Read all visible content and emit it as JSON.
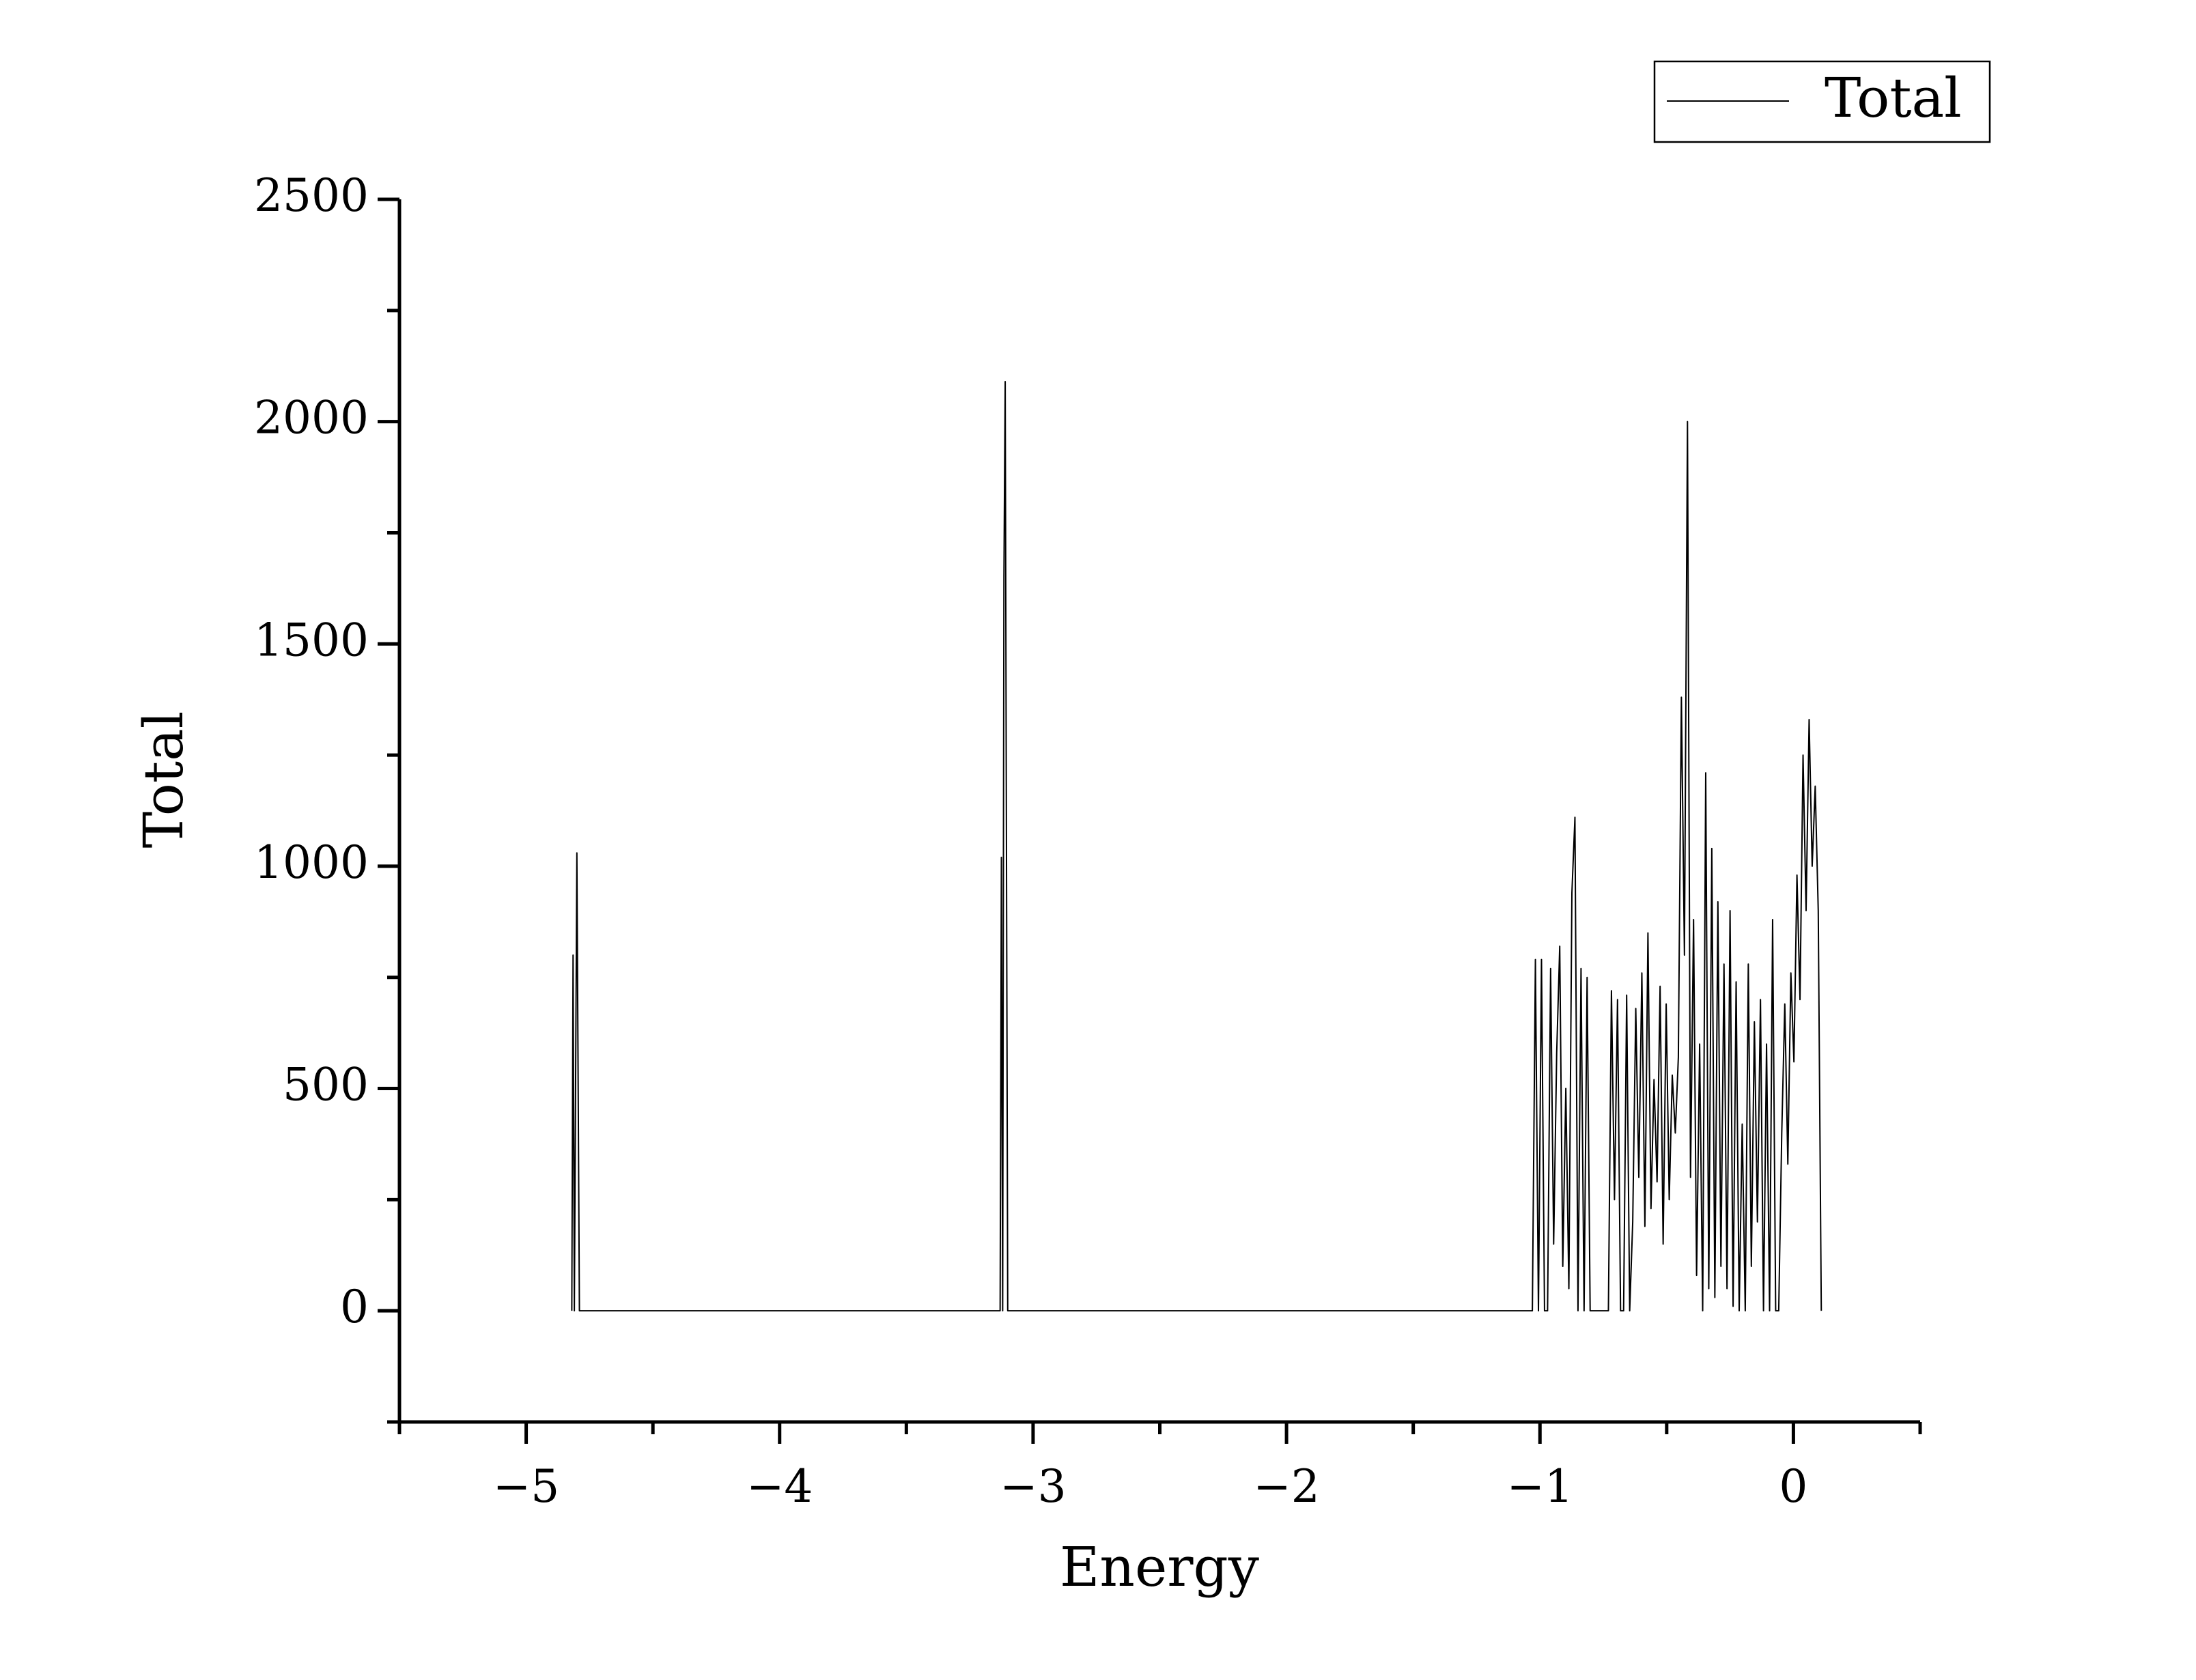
{
  "chart_data": {
    "type": "line",
    "x_label": "Energy",
    "y_label": "Total",
    "xlim": [
      -5.5,
      0.5
    ],
    "ylim": [
      -250,
      2500
    ],
    "xticks": [
      {
        "value": -5,
        "label": "−5"
      },
      {
        "value": -4,
        "label": "−4"
      },
      {
        "value": -3,
        "label": "−3"
      },
      {
        "value": -2,
        "label": "−2"
      },
      {
        "value": -1,
        "label": "−1"
      },
      0
    ],
    "yticks": [
      0,
      500,
      1000,
      1500,
      2000,
      2500
    ],
    "legend": "top-right",
    "x": [
      -4.82,
      -4.815,
      -4.81,
      -4.8,
      -4.79,
      -3.13,
      -3.125,
      -3.12,
      -3.115,
      -3.11,
      -3.1,
      -1.03,
      -1.018,
      -1.006,
      -0.994,
      -0.982,
      -0.97,
      -0.958,
      -0.946,
      -0.934,
      -0.922,
      -0.91,
      -0.898,
      -0.886,
      -0.874,
      -0.862,
      -0.85,
      -0.838,
      -0.826,
      -0.814,
      -0.802,
      -0.79,
      -0.778,
      -0.766,
      -0.754,
      -0.742,
      -0.73,
      -0.718,
      -0.706,
      -0.694,
      -0.682,
      -0.67,
      -0.658,
      -0.646,
      -0.634,
      -0.622,
      -0.61,
      -0.598,
      -0.586,
      -0.574,
      -0.562,
      -0.55,
      -0.538,
      -0.526,
      -0.514,
      -0.502,
      -0.49,
      -0.478,
      -0.466,
      -0.454,
      -0.442,
      -0.43,
      -0.418,
      -0.406,
      -0.394,
      -0.382,
      -0.37,
      -0.358,
      -0.346,
      -0.334,
      -0.322,
      -0.31,
      -0.298,
      -0.286,
      -0.274,
      -0.262,
      -0.25,
      -0.238,
      -0.226,
      -0.214,
      -0.202,
      -0.19,
      -0.178,
      -0.166,
      -0.154,
      -0.142,
      -0.13,
      -0.118,
      -0.106,
      -0.094,
      -0.082,
      -0.07,
      -0.058,
      -0.046,
      -0.034,
      -0.022,
      -0.01,
      0.002,
      0.014,
      0.026,
      0.038,
      0.05,
      0.062,
      0.074,
      0.086,
      0.098,
      0.11
    ],
    "series": [
      {
        "name": "Total",
        "color": "#000000",
        "values": [
          0,
          800,
          0,
          1030,
          0,
          0,
          1020,
          0,
          1650,
          2090,
          0,
          0,
          790,
          0,
          790,
          0,
          0,
          770,
          150,
          580,
          820,
          100,
          500,
          50,
          940,
          1110,
          0,
          770,
          0,
          750,
          0,
          0,
          0,
          0,
          0,
          0,
          0,
          720,
          250,
          700,
          0,
          0,
          710,
          0,
          200,
          680,
          300,
          760,
          190,
          850,
          230,
          520,
          290,
          730,
          150,
          690,
          250,
          530,
          400,
          570,
          1380,
          800,
          2000,
          300,
          880,
          80,
          600,
          0,
          1210,
          50,
          1040,
          30,
          920,
          100,
          780,
          50,
          900,
          10,
          740,
          0,
          420,
          0,
          780,
          100,
          650,
          200,
          700,
          0,
          600,
          0,
          880,
          0,
          0,
          400,
          690,
          330,
          760,
          560,
          980,
          700,
          1250,
          900,
          1330,
          1000,
          1180,
          900,
          0
        ]
      }
    ]
  }
}
